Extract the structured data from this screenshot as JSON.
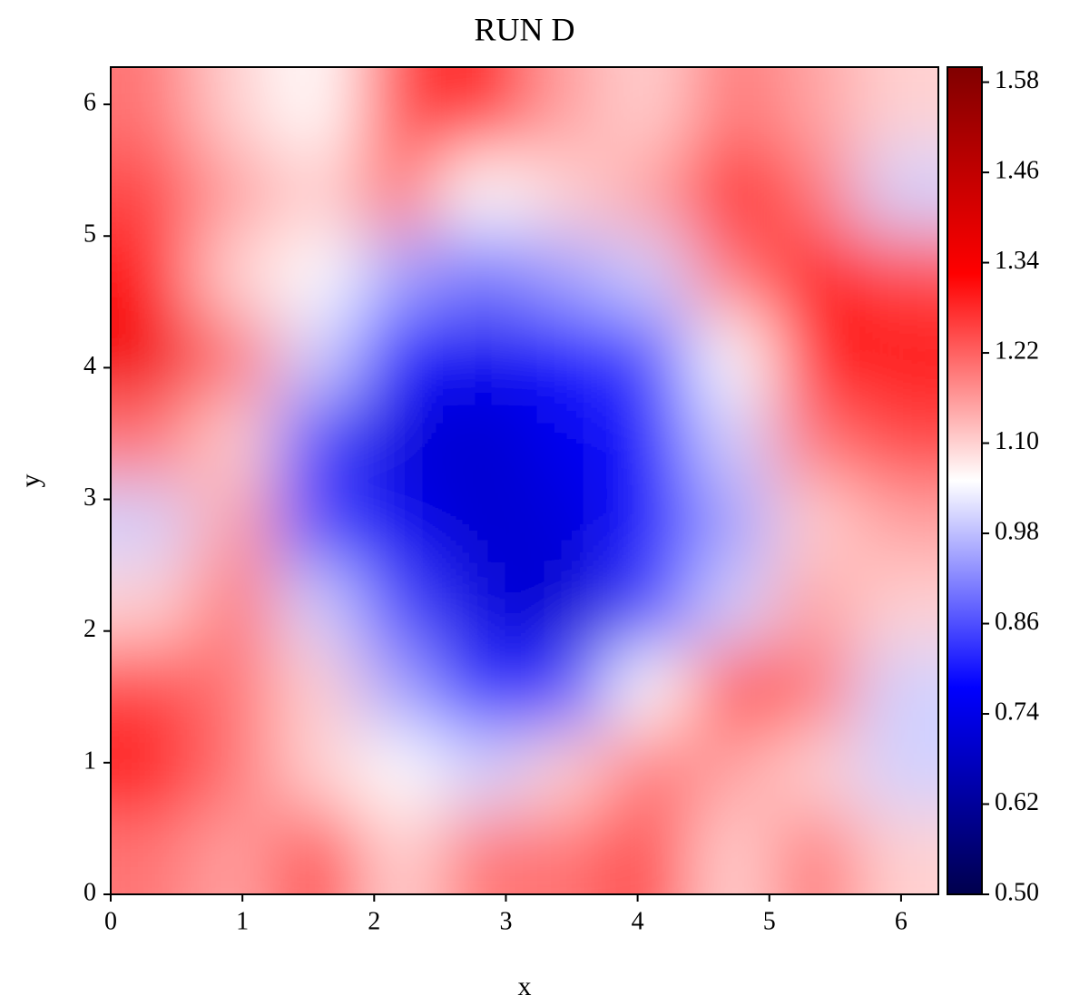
{
  "chart_data": {
    "type": "heatmap",
    "title": "RUN D",
    "x_label": "x",
    "y_label": "y",
    "xlim": [
      0,
      6.283
    ],
    "ylim": [
      0,
      6.283
    ],
    "xticks": [
      0,
      1,
      2,
      3,
      4,
      5,
      6
    ],
    "yticks": [
      0,
      1,
      2,
      3,
      4,
      5,
      6
    ],
    "colormap": "seismic",
    "clim": [
      0.5,
      1.6
    ],
    "cticks": [
      {
        "value": 0.5,
        "label": "0.50"
      },
      {
        "value": 0.62,
        "label": "0.62"
      },
      {
        "value": 0.74,
        "label": "0.74"
      },
      {
        "value": 0.86,
        "label": "0.86"
      },
      {
        "value": 0.98,
        "label": "0.98"
      },
      {
        "value": 1.1,
        "label": "1.10"
      },
      {
        "value": 1.22,
        "label": "1.22"
      },
      {
        "value": 1.34,
        "label": "1.34"
      },
      {
        "value": 1.46,
        "label": "1.46"
      },
      {
        "value": 1.58,
        "label": "1.58"
      }
    ],
    "z": [
      [
        1.2,
        1.15,
        1.25,
        1.1,
        1.2,
        1.2,
        1.25,
        1.1,
        1.2,
        1.1
      ],
      [
        1.3,
        1.2,
        1.1,
        1.05,
        1.0,
        1.1,
        1.2,
        1.15,
        1.1,
        1.0
      ],
      [
        1.25,
        1.2,
        1.1,
        0.95,
        0.8,
        0.85,
        1.05,
        1.25,
        1.2,
        1.0
      ],
      [
        1.1,
        1.2,
        1.0,
        0.85,
        0.72,
        0.7,
        0.85,
        1.0,
        1.15,
        1.1
      ],
      [
        1.0,
        1.15,
        0.85,
        0.75,
        0.7,
        0.72,
        0.8,
        0.95,
        1.1,
        1.15
      ],
      [
        1.2,
        1.1,
        0.85,
        0.72,
        0.7,
        0.75,
        0.8,
        1.0,
        1.2,
        1.25
      ],
      [
        1.35,
        1.2,
        1.0,
        0.8,
        0.75,
        0.8,
        0.85,
        1.05,
        1.3,
        1.3
      ],
      [
        1.3,
        1.1,
        1.05,
        0.95,
        0.9,
        0.95,
        1.0,
        1.2,
        1.3,
        1.25
      ],
      [
        1.25,
        1.15,
        1.1,
        1.2,
        1.05,
        1.1,
        1.15,
        1.3,
        1.2,
        1.0
      ],
      [
        1.2,
        1.1,
        1.05,
        1.25,
        1.3,
        1.15,
        1.1,
        1.2,
        1.15,
        1.1
      ]
    ]
  }
}
